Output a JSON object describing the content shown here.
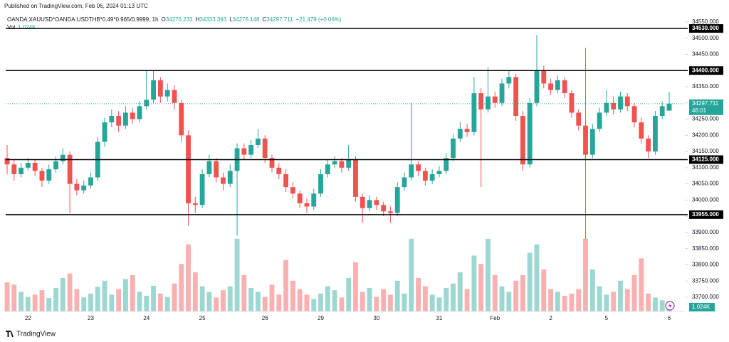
{
  "published": "Published on TradingView.com, Feb 06, 2024 01:13 UTC",
  "footer": "TradingView",
  "chart_data": {
    "type": "candlestick",
    "symbol": "OANDA:XAUUSD*OANDA:USDTHB*0.49*0.965/0.9999, 1h",
    "ohlc_labels": [
      "O",
      "H",
      "L",
      "C"
    ],
    "change": "+21.479 (+0.06%)",
    "volume_name": "Vol",
    "last_volume_label": "1.024K",
    "countdown": "46:01",
    "up_color": "#26a69a",
    "down_color": "#ef5350",
    "ylim": [
      33656,
      34596
    ],
    "vlim": [
      0,
      14
    ],
    "yticks": [
      {
        "value": 33700,
        "label": "33700.000"
      },
      {
        "value": 33750,
        "label": "33750.000"
      },
      {
        "value": 33800,
        "label": "33800.000"
      },
      {
        "value": 33850,
        "label": "33850.000"
      },
      {
        "value": 33900,
        "label": "33900.000"
      },
      {
        "value": 33950,
        "label": "33950.000"
      },
      {
        "value": 34000,
        "label": "34000.000"
      },
      {
        "value": 34050,
        "label": "34050.000"
      },
      {
        "value": 34100,
        "label": "34100.000"
      },
      {
        "value": 34150,
        "label": "34150.000"
      },
      {
        "value": 34200,
        "label": "34200.000"
      },
      {
        "value": 34250,
        "label": "34250.000"
      },
      {
        "value": 34300,
        "label": "34300.000"
      },
      {
        "value": 34350,
        "label": "34350.000"
      },
      {
        "value": 34400,
        "label": "34400.000"
      },
      {
        "value": 34450,
        "label": "34450.000"
      },
      {
        "value": 34500,
        "label": "34500.000"
      },
      {
        "value": 34550,
        "label": "34550.000"
      }
    ],
    "levels": [
      {
        "value": 34530,
        "label": "34530.000"
      },
      {
        "value": 34400,
        "label": "34400.000"
      },
      {
        "value": 34125,
        "label": "34125.000"
      },
      {
        "value": 33955,
        "label": "33955.000"
      }
    ],
    "categories": [
      null,
      null,
      null,
      "22",
      null,
      null,
      null,
      null,
      null,
      null,
      null,
      null,
      "23",
      null,
      null,
      null,
      null,
      null,
      null,
      null,
      "24",
      null,
      null,
      null,
      null,
      null,
      null,
      null,
      "25",
      null,
      null,
      null,
      null,
      null,
      null,
      null,
      null,
      "26",
      null,
      null,
      null,
      null,
      null,
      null,
      null,
      "29",
      null,
      null,
      null,
      null,
      null,
      null,
      null,
      "30",
      null,
      null,
      null,
      null,
      null,
      null,
      null,
      null,
      "31",
      null,
      null,
      null,
      null,
      null,
      null,
      null,
      "Feb",
      null,
      null,
      null,
      null,
      null,
      null,
      null,
      "2",
      null,
      null,
      null,
      null,
      null,
      null,
      null,
      "5",
      null,
      null,
      null,
      null,
      null,
      null,
      null,
      null,
      "6"
    ],
    "ohlc": [
      [
        34130,
        34170,
        34080,
        34110
      ],
      [
        34110,
        34125,
        34060,
        34080
      ],
      [
        34080,
        34115,
        34070,
        34100
      ],
      [
        34100,
        34130,
        34090,
        34115
      ],
      [
        34115,
        34125,
        34075,
        34090
      ],
      [
        34090,
        34100,
        34040,
        34060
      ],
      [
        34060,
        34110,
        34050,
        34095
      ],
      [
        34095,
        34135,
        34085,
        34120
      ],
      [
        34120,
        34160,
        34110,
        34140
      ],
      [
        34140,
        34150,
        33960,
        34050
      ],
      [
        34050,
        34065,
        34015,
        34030
      ],
      [
        34030,
        34060,
        34020,
        34045
      ],
      [
        34045,
        34085,
        34035,
        34070
      ],
      [
        34070,
        34195,
        34060,
        34180
      ],
      [
        34180,
        34255,
        34165,
        34240
      ],
      [
        34240,
        34280,
        34225,
        34260
      ],
      [
        34260,
        34275,
        34210,
        34230
      ],
      [
        34230,
        34290,
        34220,
        34270
      ],
      [
        34270,
        34285,
        34235,
        34250
      ],
      [
        34250,
        34305,
        34240,
        34290
      ],
      [
        34290,
        34400,
        34280,
        34310
      ],
      [
        34310,
        34400,
        34300,
        34370
      ],
      [
        34370,
        34380,
        34300,
        34320
      ],
      [
        34320,
        34360,
        34305,
        34340
      ],
      [
        34340,
        34355,
        34280,
        34300
      ],
      [
        34300,
        34310,
        34180,
        34200
      ],
      [
        34200,
        34215,
        33920,
        33990
      ],
      [
        33990,
        34010,
        33960,
        33985
      ],
      [
        33985,
        34095,
        33975,
        34080
      ],
      [
        34080,
        34140,
        34070,
        34120
      ],
      [
        34120,
        34130,
        34055,
        34070
      ],
      [
        34070,
        34085,
        34030,
        34050
      ],
      [
        34050,
        34110,
        34040,
        34090
      ],
      [
        34090,
        34175,
        33890,
        34160
      ],
      [
        34160,
        34175,
        34125,
        34140
      ],
      [
        34140,
        34185,
        34130,
        34170
      ],
      [
        34170,
        34220,
        34160,
        34190
      ],
      [
        34190,
        34200,
        34115,
        34130
      ],
      [
        34130,
        34140,
        34085,
        34100
      ],
      [
        34100,
        34115,
        34065,
        34080
      ],
      [
        34080,
        34095,
        34025,
        34040
      ],
      [
        34040,
        34055,
        34005,
        34020
      ],
      [
        34020,
        34030,
        33975,
        33990
      ],
      [
        33990,
        34005,
        33960,
        33980
      ],
      [
        33980,
        34035,
        33970,
        34020
      ],
      [
        34020,
        34095,
        34010,
        34080
      ],
      [
        34080,
        34125,
        34070,
        34110
      ],
      [
        34110,
        34135,
        34100,
        34120
      ],
      [
        34120,
        34130,
        34085,
        34100
      ],
      [
        34100,
        34170,
        34090,
        34125
      ],
      [
        34125,
        34135,
        33995,
        34010
      ],
      [
        34010,
        34020,
        33930,
        33975
      ],
      [
        33975,
        34015,
        33965,
        34000
      ],
      [
        34000,
        34010,
        33970,
        33985
      ],
      [
        33985,
        33995,
        33950,
        33965
      ],
      [
        33965,
        33980,
        33930,
        33960
      ],
      [
        33960,
        34055,
        33950,
        34040
      ],
      [
        34040,
        34085,
        34030,
        34070
      ],
      [
        34070,
        34300,
        34060,
        34110
      ],
      [
        34110,
        34120,
        34075,
        34090
      ],
      [
        34090,
        34100,
        34045,
        34060
      ],
      [
        34060,
        34095,
        34050,
        34080
      ],
      [
        34080,
        34105,
        34070,
        34090
      ],
      [
        34090,
        34145,
        34080,
        34130
      ],
      [
        34130,
        34205,
        34120,
        34190
      ],
      [
        34190,
        34240,
        34180,
        34220
      ],
      [
        34220,
        34235,
        34195,
        34210
      ],
      [
        34210,
        34380,
        34200,
        34330
      ],
      [
        34330,
        34345,
        34040,
        34280
      ],
      [
        34280,
        34410,
        34270,
        34320
      ],
      [
        34320,
        34335,
        34285,
        34300
      ],
      [
        34300,
        34375,
        34290,
        34360
      ],
      [
        34360,
        34400,
        34345,
        34380
      ],
      [
        34380,
        34390,
        34245,
        34260
      ],
      [
        34260,
        34275,
        34090,
        34110
      ],
      [
        34110,
        34315,
        34100,
        34300
      ],
      [
        34300,
        34510,
        34290,
        34400
      ],
      [
        34400,
        34415,
        34345,
        34360
      ],
      [
        34360,
        34375,
        34325,
        34340
      ],
      [
        34340,
        34385,
        34330,
        34370
      ],
      [
        34370,
        34380,
        34315,
        34330
      ],
      [
        34330,
        34340,
        34255,
        34270
      ],
      [
        34270,
        34280,
        34215,
        34230
      ],
      [
        34230,
        34470,
        33880,
        34140
      ],
      [
        34140,
        34235,
        34130,
        34220
      ],
      [
        34220,
        34285,
        34210,
        34270
      ],
      [
        34270,
        34340,
        34260,
        34300
      ],
      [
        34300,
        34320,
        34265,
        34280
      ],
      [
        34280,
        34335,
        34270,
        34320
      ],
      [
        34320,
        34330,
        34275,
        34290
      ],
      [
        34290,
        34300,
        34225,
        34240
      ],
      [
        34240,
        34255,
        34175,
        34190
      ],
      [
        34190,
        34200,
        34130,
        34150
      ],
      [
        34150,
        34275,
        34140,
        34260
      ],
      [
        34260,
        34305,
        34250,
        34290
      ],
      [
        34276.233,
        34333.393,
        34276.148,
        34297.711
      ]
    ],
    "volume": [
      5.2,
      4.8,
      3.5,
      2.6,
      3.0,
      3.8,
      2.4,
      4.2,
      6.0,
      6.8,
      4.0,
      2.5,
      3.2,
      4.4,
      5.5,
      3.0,
      4.0,
      5.8,
      6.5,
      3.5,
      2.8,
      4.6,
      3.2,
      2.6,
      5.0,
      8.5,
      12.0,
      7.0,
      4.5,
      3.5,
      2.5,
      3.8,
      4.5,
      13.0,
      6.5,
      4.2,
      3.5,
      2.6,
      4.8,
      3.0,
      9.2,
      5.5,
      4.0,
      3.0,
      2.2,
      3.2,
      4.5,
      3.8,
      2.5,
      6.0,
      8.8,
      3.5,
      4.2,
      2.6,
      4.0,
      3.0,
      5.5,
      3.2,
      13.0,
      6.0,
      4.5,
      3.0,
      2.5,
      4.2,
      5.0,
      7.0,
      4.0,
      10.0,
      8.5,
      13.0,
      6.5,
      4.5,
      3.5,
      5.5,
      6.5,
      10.5,
      12.0,
      7.5,
      4.0,
      3.5,
      2.8,
      3.2,
      4.0,
      13.0,
      7.5,
      4.5,
      3.0,
      3.5,
      5.5,
      4.0,
      6.5,
      9.5,
      3.2,
      2.5,
      2.0,
      1.024
    ]
  }
}
